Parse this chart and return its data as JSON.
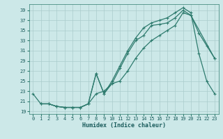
{
  "title": "",
  "xlabel": "Humidex (Indice chaleur)",
  "bg_color": "#cce8e8",
  "line_color": "#2e7b6e",
  "grid_color": "#aacccc",
  "xlim": [
    -0.5,
    23.5
  ],
  "ylim": [
    18.5,
    40.2
  ],
  "xticks": [
    0,
    1,
    2,
    3,
    4,
    5,
    6,
    7,
    8,
    9,
    10,
    11,
    12,
    13,
    14,
    15,
    16,
    17,
    18,
    19,
    20,
    21,
    22,
    23
  ],
  "yticks": [
    19,
    21,
    23,
    25,
    27,
    29,
    31,
    33,
    35,
    37,
    39
  ],
  "curve1_x": [
    0,
    1,
    2,
    3,
    4,
    5,
    6,
    7,
    8,
    9,
    10,
    11,
    12,
    13,
    14,
    15,
    16,
    17,
    18,
    19,
    20,
    21,
    22,
    23
  ],
  "curve1_y": [
    22.5,
    20.5,
    20.5,
    20.0,
    19.8,
    19.8,
    19.8,
    20.5,
    22.5,
    23.0,
    24.5,
    27.5,
    30.5,
    33.0,
    34.0,
    36.0,
    36.2,
    36.5,
    37.5,
    39.0,
    38.0,
    34.5,
    32.0,
    29.5
  ],
  "curve2_x": [
    1,
    2,
    3,
    4,
    5,
    6,
    7,
    8,
    9,
    10,
    11,
    12,
    13,
    14,
    15,
    16,
    17,
    18,
    19,
    20,
    21,
    22,
    23
  ],
  "curve2_y": [
    20.5,
    20.5,
    20.0,
    19.8,
    19.8,
    19.8,
    20.5,
    26.5,
    22.5,
    25.0,
    28.0,
    31.0,
    33.5,
    35.5,
    36.5,
    37.0,
    37.5,
    38.5,
    39.5,
    38.5,
    30.5,
    25.0,
    22.5
  ],
  "curve3_x": [
    1,
    2,
    3,
    4,
    5,
    6,
    7,
    8,
    9,
    10,
    11,
    12,
    13,
    14,
    15,
    16,
    17,
    18,
    19,
    20,
    23
  ],
  "curve3_y": [
    20.5,
    20.5,
    20.0,
    19.8,
    19.8,
    19.8,
    20.5,
    26.5,
    22.5,
    24.5,
    25.0,
    27.0,
    29.5,
    31.5,
    33.0,
    34.0,
    35.0,
    36.0,
    38.5,
    38.0,
    29.5
  ]
}
